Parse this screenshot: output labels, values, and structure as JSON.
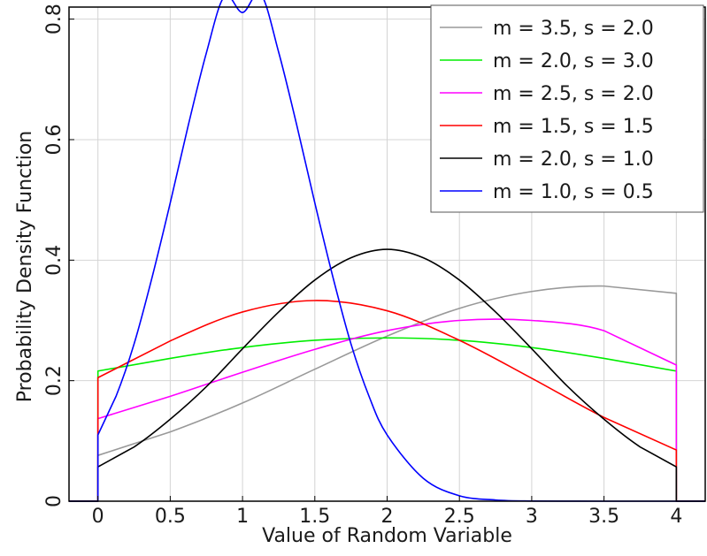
{
  "chart_data": {
    "type": "line",
    "title": "",
    "xlabel": "Value of Random Variable",
    "ylabel": "Probability Density Function",
    "xlim": [
      -0.2,
      4.2
    ],
    "ylim": [
      0,
      0.82
    ],
    "xticks": [
      0,
      0.5,
      1,
      1.5,
      2,
      2.5,
      3,
      3.5,
      4
    ],
    "xtick_labels": [
      "0",
      "0.5",
      "1",
      "1.5",
      "2",
      "2.5",
      "3",
      "3.5",
      "4"
    ],
    "yticks": [
      0,
      0.2,
      0.4,
      0.6,
      0.8
    ],
    "ytick_labels": [
      "0",
      "0.2",
      "0.4",
      "0.6",
      "0.8"
    ],
    "grid": true,
    "legend_position": "top-right",
    "distribution_support": [
      0,
      4
    ],
    "series": [
      {
        "name": "m = 3.5, s = 2.0",
        "color": "#999999",
        "x": [
          -0.2,
          0,
          0,
          0.5,
          1.0,
          1.5,
          2.0,
          2.5,
          3.0,
          3.5,
          4.0,
          4.0,
          4.2
        ],
        "y": [
          0,
          0,
          0.076,
          0.115,
          0.163,
          0.219,
          0.274,
          0.32,
          0.348,
          0.357,
          0.345,
          0,
          0
        ]
      },
      {
        "name": "m = 2.0, s = 3.0",
        "color": "#00ee00",
        "x": [
          -0.2,
          0,
          0,
          0.5,
          1.0,
          1.5,
          2.0,
          2.5,
          3.0,
          3.5,
          4.0,
          4.0,
          4.2
        ],
        "y": [
          0,
          0,
          0.216,
          0.237,
          0.255,
          0.267,
          0.271,
          0.267,
          0.255,
          0.237,
          0.216,
          0,
          0
        ]
      },
      {
        "name": "m = 2.5, s = 2.0",
        "color": "#ff00ff",
        "x": [
          -0.2,
          0,
          0,
          0.5,
          1.0,
          1.5,
          2.0,
          2.5,
          3.0,
          3.5,
          4.0,
          4.0,
          4.2
        ],
        "y": [
          0,
          0,
          0.137,
          0.174,
          0.214,
          0.252,
          0.283,
          0.3,
          0.3,
          0.283,
          0.226,
          0,
          0
        ]
      },
      {
        "name": "m = 1.5, s = 1.5",
        "color": "#ff0000",
        "x": [
          -0.2,
          0,
          0,
          0.5,
          1.0,
          1.5,
          2.0,
          2.5,
          3.0,
          3.5,
          4.0,
          4.0,
          4.2
        ],
        "y": [
          0,
          0,
          0.205,
          0.266,
          0.314,
          0.333,
          0.316,
          0.267,
          0.204,
          0.139,
          0.085,
          0,
          0
        ]
      },
      {
        "name": "m = 2.0, s = 1.0",
        "color": "#000000",
        "x": [
          -0.2,
          0,
          0,
          0.25,
          0.5,
          0.75,
          1.0,
          1.25,
          1.5,
          1.75,
          2.0,
          2.25,
          2.5,
          2.75,
          3.0,
          3.25,
          3.5,
          3.75,
          4.0,
          4.0,
          4.2
        ],
        "y": [
          0,
          0,
          0.057,
          0.09,
          0.136,
          0.19,
          0.253,
          0.314,
          0.367,
          0.404,
          0.418,
          0.404,
          0.367,
          0.314,
          0.253,
          0.19,
          0.136,
          0.09,
          0.057,
          0,
          0
        ]
      },
      {
        "name": "m = 1.0, s = 0.5",
        "color": "#0000ff",
        "x": [
          -0.2,
          0,
          0,
          0.125,
          0.25,
          0.375,
          0.5,
          0.625,
          0.75,
          0.875,
          1.0,
          1.125,
          1.25,
          1.375,
          1.5,
          1.625,
          1.75,
          1.875,
          2.0,
          2.25,
          2.5,
          2.75,
          3.0,
          3.5,
          4.0,
          4.0,
          4.2
        ],
        "y": [
          0,
          0,
          0.11,
          0.174,
          0.261,
          0.372,
          0.495,
          0.624,
          0.744,
          0.838,
          0.811,
          0.842,
          0.745,
          0.624,
          0.495,
          0.372,
          0.261,
          0.174,
          0.11,
          0.038,
          0.009,
          0.002,
          0.0003,
          0,
          0,
          0,
          0
        ]
      }
    ]
  }
}
